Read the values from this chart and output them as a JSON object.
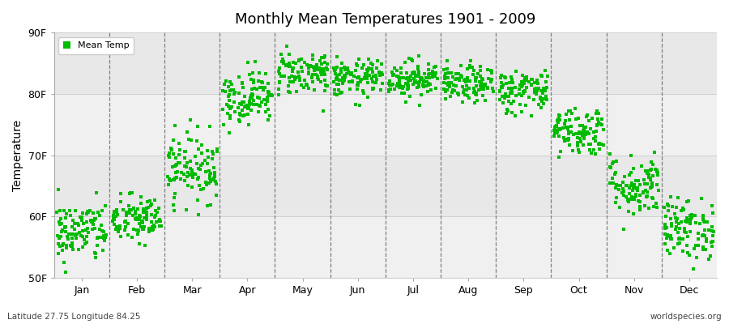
{
  "title": "Monthly Mean Temperatures 1901 - 2009",
  "ylabel": "Temperature",
  "subtitle_lat": "Latitude 27.75 Longitude 84.25",
  "watermark": "worldspecies.org",
  "legend_label": "Mean Temp",
  "dot_color": "#00bb00",
  "months": [
    "Jan",
    "Feb",
    "Mar",
    "Apr",
    "May",
    "Jun",
    "Jul",
    "Aug",
    "Sep",
    "Oct",
    "Nov",
    "Dec"
  ],
  "month_mean_temps_F": [
    57.5,
    59.5,
    68.0,
    79.5,
    83.5,
    82.5,
    82.5,
    81.5,
    80.5,
    74.0,
    65.0,
    58.0
  ],
  "month_std_F": [
    2.5,
    2.0,
    2.8,
    2.2,
    1.8,
    1.5,
    1.5,
    1.5,
    1.8,
    2.0,
    2.5,
    2.5
  ],
  "ylim": [
    50,
    90
  ],
  "yticks": [
    50,
    60,
    70,
    80,
    90
  ],
  "ytick_labels": [
    "50F",
    "60F",
    "70F",
    "80F",
    "90F"
  ],
  "n_years": 109,
  "seed": 42,
  "bg_bands": [
    {
      "ymin": 90,
      "ymax": 80,
      "color": "#e8e8e8"
    },
    {
      "ymin": 80,
      "ymax": 70,
      "color": "#f0f0f0"
    },
    {
      "ymin": 70,
      "ymax": 60,
      "color": "#e8e8e8"
    },
    {
      "ymin": 60,
      "ymax": 50,
      "color": "#f0f0f0"
    }
  ]
}
